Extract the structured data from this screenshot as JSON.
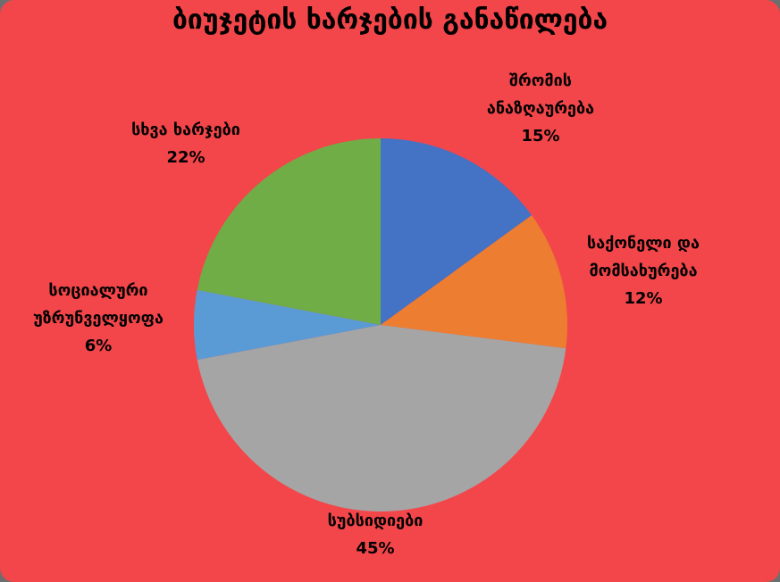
{
  "chart_data": {
    "type": "pie",
    "title": "ბიუჯეტის ხარჯების განაწილება",
    "categories": [
      "შრომის ანაზღაურება",
      "საქონელი და მომსახურება",
      "სუბსიდიები",
      "სოციალური უზრუნველყოფა",
      "სხვა ხარჯები"
    ],
    "values": [
      15,
      12,
      45,
      6,
      22
    ],
    "colors": [
      "#4472c4",
      "#ed7d31",
      "#a5a5a5",
      "#5b9bd5",
      "#70ad47"
    ],
    "show_legend": false,
    "data_labels": true
  },
  "colors": {
    "background": "#f3464a",
    "text": "#000000"
  }
}
